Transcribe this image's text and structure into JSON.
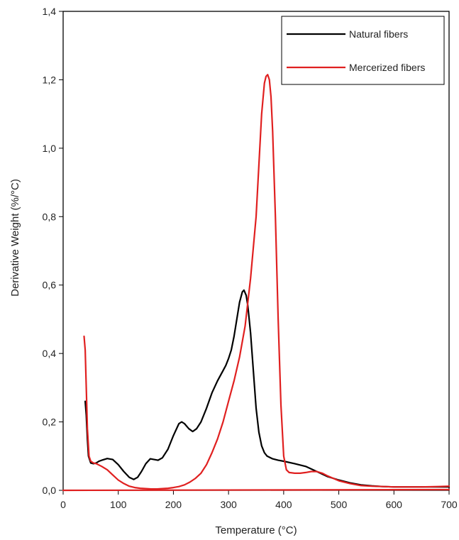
{
  "chart_data": {
    "type": "line",
    "title": "",
    "xlabel": "Temperature (°C)",
    "ylabel": "Derivative Weight (%/°C)",
    "xlim": [
      0,
      700
    ],
    "ylim": [
      0,
      1.4
    ],
    "x_ticks": [
      0,
      100,
      200,
      300,
      400,
      500,
      600,
      700
    ],
    "y_ticks": [
      0,
      0.2,
      0.4,
      0.6,
      0.8,
      1.0,
      1.2,
      1.4
    ],
    "x_tick_labels": [
      "0",
      "100",
      "200",
      "300",
      "400",
      "500",
      "600",
      "700"
    ],
    "y_tick_labels": [
      "0,0",
      "0,2",
      "0,4",
      "0,6",
      "0,8",
      "1,0",
      "1,2",
      "1,4"
    ],
    "grid": false,
    "legend_position": "top-right",
    "series": [
      {
        "name": "Natural fibers",
        "color": "#000000",
        "points": [
          [
            40,
            0.26
          ],
          [
            42,
            0.22
          ],
          [
            44,
            0.15
          ],
          [
            46,
            0.1
          ],
          [
            50,
            0.08
          ],
          [
            55,
            0.078
          ],
          [
            60,
            0.08
          ],
          [
            65,
            0.085
          ],
          [
            70,
            0.088
          ],
          [
            80,
            0.093
          ],
          [
            90,
            0.09
          ],
          [
            100,
            0.075
          ],
          [
            110,
            0.055
          ],
          [
            120,
            0.038
          ],
          [
            128,
            0.032
          ],
          [
            135,
            0.038
          ],
          [
            142,
            0.055
          ],
          [
            150,
            0.078
          ],
          [
            158,
            0.092
          ],
          [
            165,
            0.09
          ],
          [
            172,
            0.088
          ],
          [
            180,
            0.095
          ],
          [
            190,
            0.12
          ],
          [
            200,
            0.16
          ],
          [
            210,
            0.195
          ],
          [
            215,
            0.2
          ],
          [
            220,
            0.195
          ],
          [
            228,
            0.18
          ],
          [
            235,
            0.172
          ],
          [
            242,
            0.18
          ],
          [
            250,
            0.2
          ],
          [
            260,
            0.24
          ],
          [
            270,
            0.285
          ],
          [
            280,
            0.32
          ],
          [
            290,
            0.35
          ],
          [
            295,
            0.365
          ],
          [
            300,
            0.385
          ],
          [
            305,
            0.41
          ],
          [
            310,
            0.45
          ],
          [
            315,
            0.5
          ],
          [
            320,
            0.55
          ],
          [
            325,
            0.58
          ],
          [
            328,
            0.585
          ],
          [
            332,
            0.57
          ],
          [
            335,
            0.54
          ],
          [
            340,
            0.46
          ],
          [
            345,
            0.35
          ],
          [
            350,
            0.24
          ],
          [
            355,
            0.17
          ],
          [
            360,
            0.13
          ],
          [
            365,
            0.11
          ],
          [
            370,
            0.1
          ],
          [
            380,
            0.092
          ],
          [
            390,
            0.088
          ],
          [
            400,
            0.085
          ],
          [
            420,
            0.078
          ],
          [
            440,
            0.07
          ],
          [
            460,
            0.055
          ],
          [
            480,
            0.04
          ],
          [
            500,
            0.03
          ],
          [
            520,
            0.022
          ],
          [
            540,
            0.016
          ],
          [
            560,
            0.013
          ],
          [
            580,
            0.011
          ],
          [
            600,
            0.01
          ],
          [
            650,
            0.01
          ],
          [
            700,
            0.01
          ]
        ]
      },
      {
        "name": "Mercerized fibers",
        "color": "#e02020",
        "points": [
          [
            38,
            0.45
          ],
          [
            40,
            0.41
          ],
          [
            42,
            0.3
          ],
          [
            44,
            0.18
          ],
          [
            47,
            0.1
          ],
          [
            50,
            0.085
          ],
          [
            55,
            0.08
          ],
          [
            60,
            0.078
          ],
          [
            70,
            0.07
          ],
          [
            80,
            0.06
          ],
          [
            90,
            0.045
          ],
          [
            100,
            0.03
          ],
          [
            110,
            0.02
          ],
          [
            120,
            0.012
          ],
          [
            130,
            0.008
          ],
          [
            140,
            0.006
          ],
          [
            150,
            0.005
          ],
          [
            160,
            0.004
          ],
          [
            170,
            0.004
          ],
          [
            180,
            0.005
          ],
          [
            190,
            0.006
          ],
          [
            200,
            0.008
          ],
          [
            210,
            0.011
          ],
          [
            220,
            0.016
          ],
          [
            230,
            0.024
          ],
          [
            240,
            0.035
          ],
          [
            250,
            0.05
          ],
          [
            260,
            0.075
          ],
          [
            270,
            0.11
          ],
          [
            280,
            0.15
          ],
          [
            290,
            0.2
          ],
          [
            300,
            0.26
          ],
          [
            310,
            0.32
          ],
          [
            320,
            0.39
          ],
          [
            330,
            0.48
          ],
          [
            340,
            0.62
          ],
          [
            350,
            0.8
          ],
          [
            355,
            0.95
          ],
          [
            360,
            1.1
          ],
          [
            365,
            1.19
          ],
          [
            368,
            1.21
          ],
          [
            371,
            1.215
          ],
          [
            374,
            1.2
          ],
          [
            377,
            1.15
          ],
          [
            380,
            1.05
          ],
          [
            385,
            0.8
          ],
          [
            390,
            0.5
          ],
          [
            395,
            0.25
          ],
          [
            400,
            0.1
          ],
          [
            405,
            0.06
          ],
          [
            410,
            0.052
          ],
          [
            420,
            0.05
          ],
          [
            430,
            0.05
          ],
          [
            440,
            0.052
          ],
          [
            450,
            0.055
          ],
          [
            460,
            0.055
          ],
          [
            470,
            0.05
          ],
          [
            480,
            0.042
          ],
          [
            490,
            0.035
          ],
          [
            500,
            0.028
          ],
          [
            520,
            0.02
          ],
          [
            540,
            0.014
          ],
          [
            560,
            0.012
          ],
          [
            580,
            0.011
          ],
          [
            600,
            0.01
          ],
          [
            650,
            0.01
          ],
          [
            680,
            0.011
          ],
          [
            700,
            0.012
          ]
        ]
      },
      {
        "name": "",
        "color": "#e02020",
        "points": [
          [
            0,
            0.0
          ],
          [
            700,
            0.002
          ]
        ]
      }
    ]
  }
}
